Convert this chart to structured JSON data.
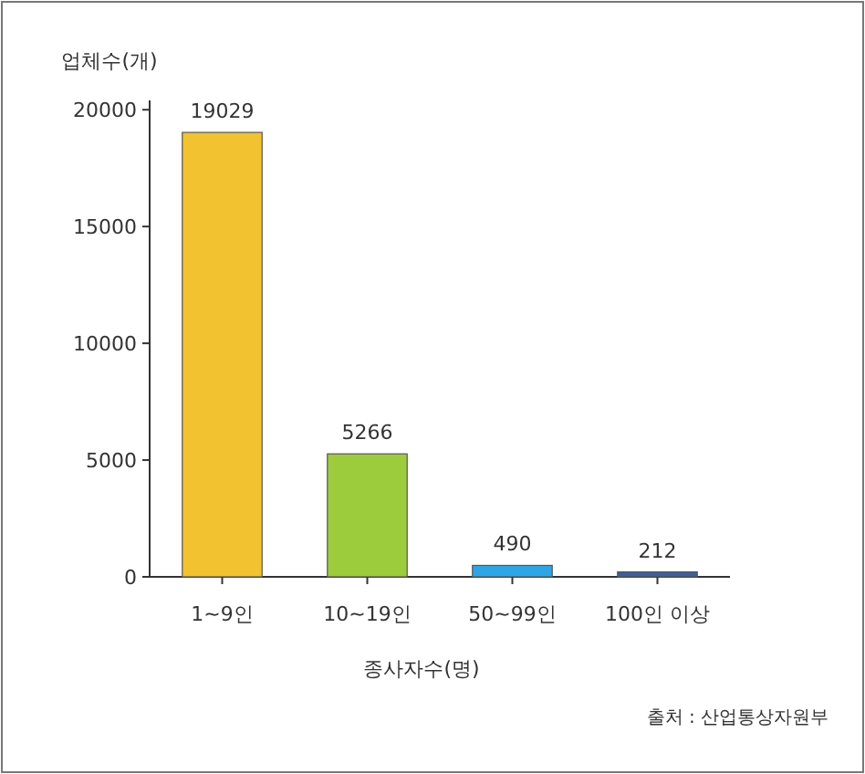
{
  "chart_data": {
    "type": "bar",
    "ylabel": "업체수(개)",
    "xlabel": "종사자수(명)",
    "categories": [
      "1~9인",
      "10~19인",
      "50~99인",
      "100인 이상"
    ],
    "values": [
      19029,
      5266,
      490,
      212
    ],
    "colors": [
      "#f2c230",
      "#9ccc3c",
      "#2ea6e6",
      "#3d5f9e"
    ],
    "data_labels": true,
    "ylim": [
      0,
      20400
    ],
    "yticks": [
      0,
      5000,
      10000,
      15000,
      20000
    ],
    "annotations": [
      "출처 : 산업통상자원부"
    ]
  }
}
